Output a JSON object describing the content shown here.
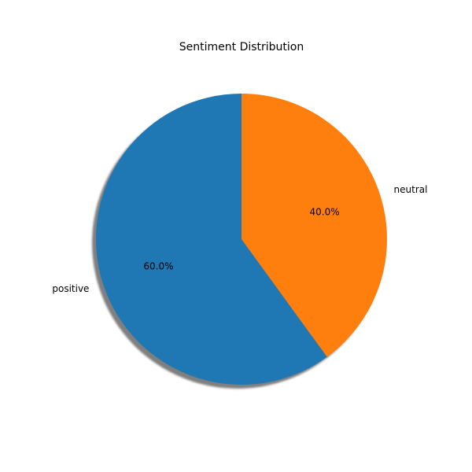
{
  "chart_data": {
    "type": "pie",
    "title": "Sentiment Distribution",
    "slices": [
      {
        "label": "positive",
        "value": 60.0,
        "pct_label": "60.0%",
        "color": "#1f77b4"
      },
      {
        "label": "neutral",
        "value": 40.0,
        "pct_label": "40.0%",
        "color": "#ff7f0e"
      }
    ],
    "shadow": true,
    "start_angle_deg": 90,
    "direction": "counterclockwise"
  }
}
